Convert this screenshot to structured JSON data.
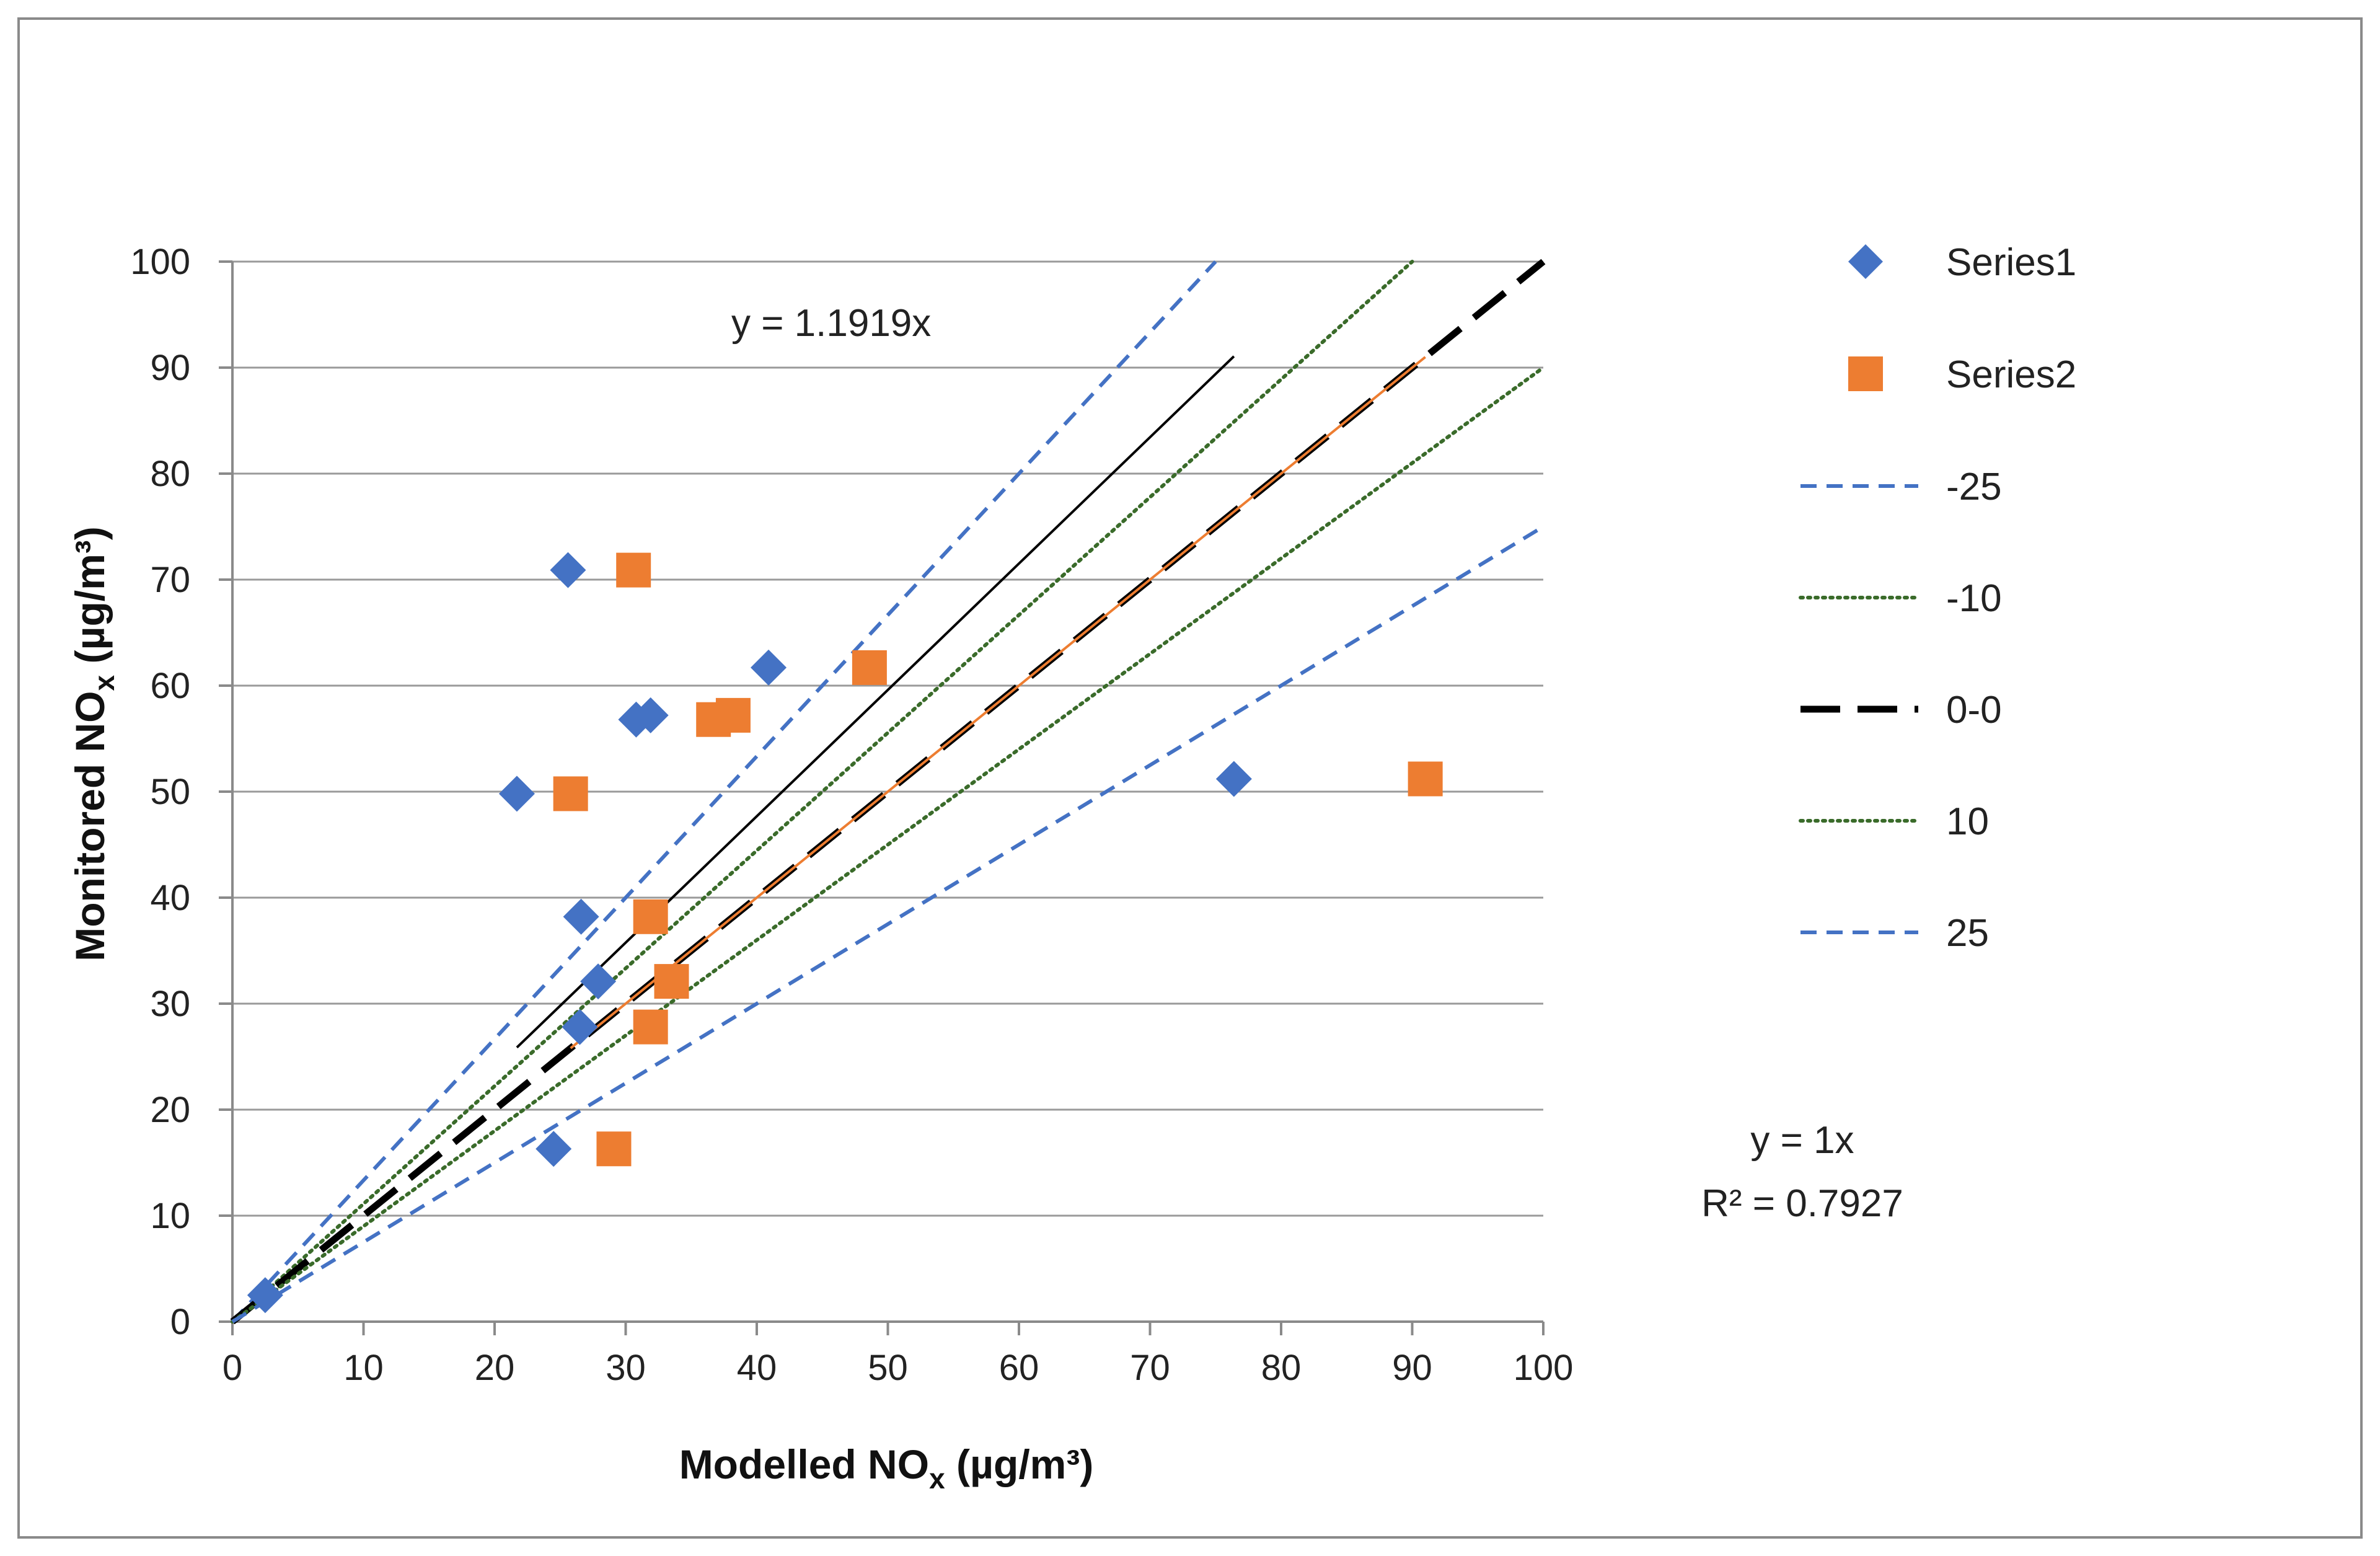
{
  "chart_data": {
    "type": "scatter",
    "x_axis": {
      "title": "Modelled NO",
      "sub": "x",
      "unit": " (µg/m³)",
      "range": [
        0,
        100
      ],
      "ticks": [
        "0",
        "10",
        "20",
        "30",
        "40",
        "50",
        "60",
        "70",
        "80",
        "90",
        "100"
      ]
    },
    "y_axis": {
      "title": "Monitored NO",
      "sub": "x",
      "unit": " (µg/m³)",
      "range": [
        0,
        100
      ],
      "ticks": [
        "0",
        "10",
        "20",
        "30",
        "40",
        "50",
        "60",
        "70",
        "80",
        "90",
        "100"
      ]
    },
    "grid": "horizontal",
    "legend_position": "right",
    "series": [
      {
        "name": "Series1",
        "marker": "diamond",
        "color": "#4472C4",
        "points": [
          [
            2.5,
            2.5
          ],
          [
            21.7,
            49.8
          ],
          [
            24.5,
            16.3
          ],
          [
            25.6,
            70.9
          ],
          [
            26.5,
            27.8
          ],
          [
            26.6,
            38.2
          ],
          [
            27.9,
            32.1
          ],
          [
            30.8,
            56.8
          ],
          [
            31.9,
            57.2
          ],
          [
            40.9,
            61.7
          ],
          [
            76.4,
            51.2
          ]
        ]
      },
      {
        "name": "Series2",
        "marker": "square",
        "color": "#ED7D31",
        "points": [
          [
            25.8,
            49.8
          ],
          [
            29.1,
            16.3
          ],
          [
            30.6,
            70.9
          ],
          [
            31.9,
            38.2
          ],
          [
            31.9,
            27.8
          ],
          [
            33.5,
            32.1
          ],
          [
            36.7,
            56.8
          ],
          [
            38.2,
            57.2
          ],
          [
            48.6,
            61.7
          ],
          [
            91.0,
            51.2
          ]
        ]
      }
    ],
    "reference_lines": [
      {
        "name": "-25",
        "slope": 1.3333,
        "color": "#4472C4",
        "style": "dash"
      },
      {
        "name": "-10",
        "slope": 1.1111,
        "color": "#3A6B2A",
        "style": "dot"
      },
      {
        "name": "0-0",
        "slope": 1.0,
        "color": "#000000",
        "style": "longdash"
      },
      {
        "name": "10",
        "slope": 0.9,
        "color": "#3A6B2A",
        "style": "dot"
      },
      {
        "name": "25",
        "slope": 0.75,
        "color": "#4472C4",
        "style": "dash"
      }
    ],
    "trendlines": [
      {
        "label": "y = 1.1919x",
        "slope": 1.1919,
        "x_from": 21.7,
        "x_to": 76.4,
        "color": "#000000"
      },
      {
        "label": "y = 1x",
        "r2_label": "R² = 0.7927",
        "slope": 1.0,
        "x_from": 25.8,
        "x_to": 91.0,
        "color": "#ED7D31"
      }
    ]
  }
}
